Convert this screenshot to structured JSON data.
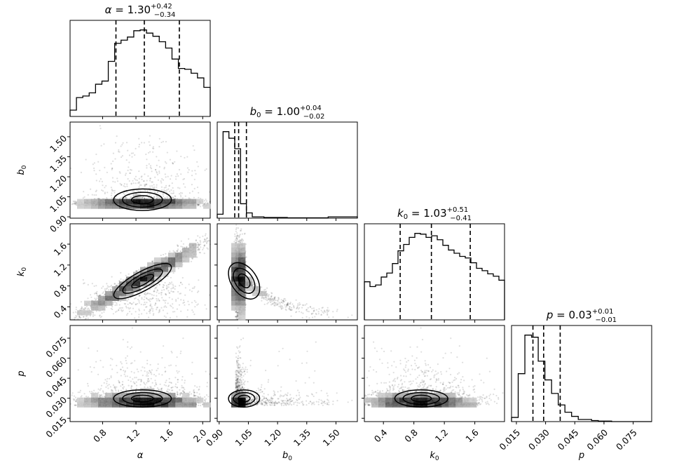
{
  "chart_data": {
    "type": "corner",
    "parameters": [
      {
        "name": "alpha",
        "label": "α",
        "median": "1.30",
        "plus": "+0.42",
        "minus": "−0.34",
        "quantiles": [
          0.96,
          1.3,
          1.72
        ],
        "range": [
          0.41,
          2.09
        ]
      },
      {
        "name": "b0",
        "label": "b",
        "sub": "0",
        "median": "1.00",
        "plus": "+0.04",
        "minus": "−0.02",
        "quantiles": [
          0.98,
          1.0,
          1.04
        ],
        "range": [
          0.89,
          1.61
        ]
      },
      {
        "name": "k0",
        "label": "k",
        "sub": "0",
        "median": "1.03",
        "plus": "+0.51",
        "minus": "−0.41",
        "quantiles": [
          0.62,
          1.03,
          1.54
        ],
        "range": [
          0.15,
          1.99
        ]
      },
      {
        "name": "p",
        "label": "p",
        "median": "0.03",
        "plus": "+0.01",
        "minus": "−0.01",
        "quantiles": [
          0.0235,
          0.029,
          0.0375
        ],
        "range": [
          0.0125,
          0.0845
        ]
      }
    ],
    "titles": [
      {
        "param": "α",
        "sub": "",
        "median": "1.30",
        "plus": "+0.42",
        "minus": "−0.34"
      },
      {
        "param": "b",
        "sub": "0",
        "median": "1.00",
        "plus": "+0.04",
        "minus": "−0.02"
      },
      {
        "param": "k",
        "sub": "0",
        "median": "1.03",
        "plus": "+0.51",
        "minus": "−0.41"
      },
      {
        "param": "p",
        "sub": "",
        "median": "0.03",
        "plus": "+0.01",
        "minus": "−0.01"
      }
    ],
    "axis_labels": {
      "x": [
        {
          "t": "α",
          "s": ""
        },
        {
          "t": "b",
          "s": "0"
        },
        {
          "t": "k",
          "s": "0"
        },
        {
          "t": "p",
          "s": ""
        }
      ],
      "y": [
        {
          "t": "b",
          "s": "0"
        },
        {
          "t": "k",
          "s": "0"
        },
        {
          "t": "p",
          "s": ""
        }
      ]
    },
    "ticks": {
      "alpha": [
        "0.8",
        "1.2",
        "1.6",
        "2.0"
      ],
      "b0": [
        "0.90",
        "1.05",
        "1.20",
        "1.35",
        "1.50"
      ],
      "k0": [
        "0.4",
        "0.8",
        "1.2",
        "1.6"
      ],
      "p": [
        "0.015",
        "0.030",
        "0.045",
        "0.060",
        "0.075"
      ]
    },
    "histograms": {
      "alpha": {
        "x0": 0.41,
        "x1": 2.09,
        "counts": [
          8,
          24,
          26,
          30,
          41,
          45,
          70,
          93,
          97,
          101,
          109,
          110,
          106,
          102,
          95,
          87,
          73,
          61,
          60,
          55,
          49,
          37
        ]
      },
      "b0": {
        "x0": 0.89,
        "x1": 1.61,
        "counts": [
          6,
          132,
          122,
          106,
          22,
          8,
          2,
          2,
          1,
          1,
          1,
          1,
          0.5,
          0.5,
          0.5,
          0.5,
          0.5,
          0.5,
          0.5,
          2,
          2,
          2,
          2,
          2
        ]
      },
      "k0": {
        "x0": 0.15,
        "x1": 1.99,
        "counts": [
          48,
          42,
          44,
          54,
          59,
          71,
          87,
          95,
          104,
          109,
          108,
          104,
          106,
          101,
          94,
          88,
          84,
          80,
          78,
          72,
          65,
          62,
          58,
          55,
          50
        ]
      },
      "p": {
        "x0": 0.0125,
        "x1": 0.0845,
        "counts": [
          4,
          46,
          83,
          81,
          58,
          40,
          27,
          16,
          9,
          5,
          2,
          2,
          1,
          0.5,
          0.5,
          0,
          0,
          0,
          0,
          0,
          0
        ]
      }
    },
    "smoothing_kernel": [
      0.05,
      0.1,
      0.14,
      0.18,
      0.35,
      0.18
    ]
  }
}
